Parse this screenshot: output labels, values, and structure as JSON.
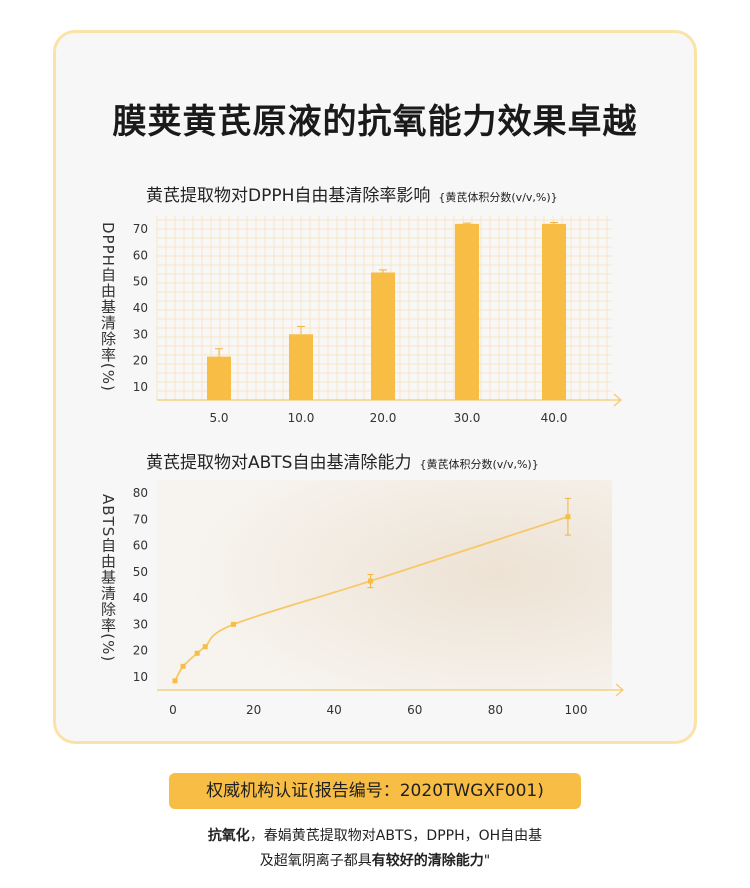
{
  "page_title": "膜荚黄芪原液的抗氧能力效果卓越",
  "colors": {
    "accent": "#f7bd45",
    "line": "#f7c86a",
    "border": "#fbe3a8",
    "grid": "#fbe0b6"
  },
  "chart_data": [
    {
      "type": "bar",
      "title": "黄芪提取物对DPPH自由基清除率影响",
      "subtitle": "{黄芪体积分数(v/v,%)}",
      "ylabel": "DPPH自由基清除率(%)",
      "xlabel": "",
      "categories": [
        "5.0",
        "10.0",
        "20.0",
        "30.0",
        "40.0"
      ],
      "values": [
        21.5,
        30,
        53.5,
        72,
        72
      ],
      "errors": [
        3,
        3,
        1,
        0.3,
        0.5
      ],
      "yticks": [
        10,
        20,
        30,
        40,
        50,
        60,
        70
      ],
      "ylim": [
        5,
        75
      ],
      "grid": true
    },
    {
      "type": "line",
      "title": "黄芪提取物对ABTS自由基清除能力",
      "subtitle": "{黄芪体积分数(v/v,%)}",
      "ylabel": "ABTS自由基清除率(%)",
      "xlabel": "",
      "x": [
        0.5,
        2.5,
        6,
        8,
        15,
        49,
        98
      ],
      "y": [
        8.5,
        14,
        19,
        21.5,
        30,
        46.5,
        71
      ],
      "errors": [
        0,
        0,
        0,
        0,
        0,
        2.5,
        7
      ],
      "xticks": [
        0,
        20,
        40,
        60,
        80,
        100
      ],
      "yticks": [
        10,
        20,
        30,
        40,
        50,
        60,
        70,
        80
      ],
      "xlim": [
        -3,
        110
      ],
      "ylim": [
        5,
        85
      ],
      "grid": false
    }
  ],
  "badge_text": "权威机构认证(报告编号：2020TWGXF001)",
  "note": {
    "line1_bold": "抗氧化",
    "line1_rest": "，春娟黄芪提取物对ABTS，DPPH，OH自由基",
    "line2_start": "及超氧阴离子都具",
    "line2_bold": "有较好的清除能力",
    "line2_end": "\""
  }
}
